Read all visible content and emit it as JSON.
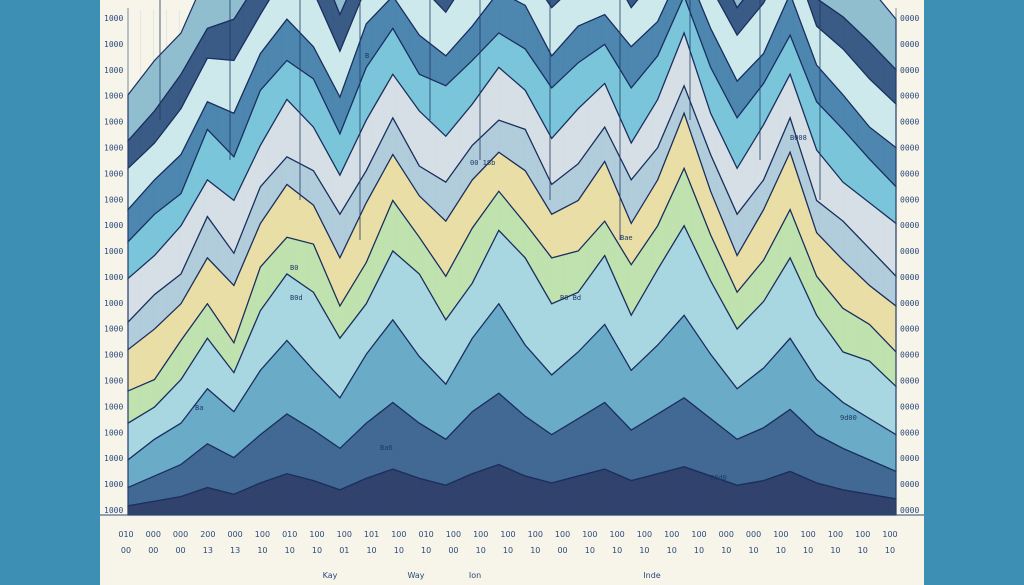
{
  "chart_data": {
    "type": "area",
    "title": "",
    "xlabel": "",
    "ylabel": "",
    "grid": true,
    "legend": "none",
    "x_range": [
      0,
      60
    ],
    "y_range": [
      0,
      22
    ],
    "y_ticks_left": [
      "1000",
      "1000",
      "1000",
      "1000",
      "1000",
      "1000",
      "1000",
      "1000",
      "1000",
      "1000",
      "1000",
      "1000",
      "1000",
      "1000",
      "1000",
      "1000",
      "1000",
      "1000",
      "1000",
      "1000"
    ],
    "y_ticks_right": [
      "0000",
      "0000",
      "0000",
      "0000",
      "0000",
      "0000",
      "0000",
      "0000",
      "0000",
      "0000",
      "0000",
      "0000",
      "0000",
      "0000",
      "0000",
      "0000",
      "0000",
      "0000",
      "0000",
      "0000"
    ],
    "x_ticks_row1": [
      "010",
      "000",
      "000",
      "200",
      "000",
      "100",
      "010",
      "100",
      "100",
      "101",
      "100",
      "010",
      "100",
      "100",
      "100",
      "100",
      "100",
      "100",
      "100",
      "100",
      "100",
      "100",
      "000",
      "000",
      "100",
      "100",
      "100",
      "100",
      "100"
    ],
    "x_ticks_row2": [
      "00",
      "00",
      "00",
      "13",
      "13",
      "10",
      "10",
      "10",
      "01",
      "10",
      "10",
      "10",
      "00",
      "10",
      "10",
      "10",
      "00",
      "10",
      "10",
      "10",
      "10",
      "10",
      "10",
      "10",
      "10",
      "10",
      "10",
      "10",
      "10"
    ],
    "month_labels": [
      "Kay",
      "Way",
      "Ion",
      "Inde"
    ],
    "annotations": [
      "Ba",
      "B0d",
      "Ba6",
      "00 18b",
      "B0 Bd",
      "Bae",
      "B8d0",
      "B008",
      "9d00",
      "B0",
      "B"
    ],
    "colors": [
      "#1b2f5e",
      "#2e5a8a",
      "#5aa3c4",
      "#9fd4e0",
      "#b8e0a8",
      "#e8dca0",
      "#a8c8d8",
      "#d0dde4",
      "#6cc0d8",
      "#3a7aa8",
      "#c8e8ec",
      "#244a7a",
      "#84b8cc"
    ],
    "series": [
      {
        "values": [
          2,
          2.2,
          1.8,
          2.4,
          2,
          1.6,
          1.9,
          2.6,
          2.2,
          1.8,
          2.1,
          2.7,
          2.2,
          1.7,
          1.9,
          2.4,
          2.2,
          1.8,
          2.0,
          2.5,
          2.3,
          1.9,
          1.6,
          1.8,
          2.1,
          1.9,
          1.7,
          2.0,
          2.4,
          2.2
        ]
      },
      {
        "values": [
          1.2,
          1.4,
          1.5,
          1.3,
          1.8,
          1.6,
          1.4,
          1.9,
          1.6,
          1.4,
          1.8,
          2.1,
          1.6,
          1.4,
          1.7,
          1.3,
          1.8,
          1.5,
          1.9,
          1.6,
          1.4,
          1.7,
          1.5,
          1.2,
          1.3,
          1.5,
          1.2,
          1.4,
          1.6,
          1.5
        ]
      },
      {
        "values": [
          1.8,
          1.6,
          2.0,
          1.9,
          2.3,
          1.7,
          2.1,
          2.4,
          2.0,
          1.6,
          1.8,
          2.2,
          1.9,
          2.4,
          1.8,
          1.6,
          2.1,
          1.9,
          2.4,
          1.7,
          2.0,
          2.3,
          1.8,
          2.0,
          2.2,
          1.9,
          1.7,
          2.0,
          2.1,
          1.9
        ]
      },
      {
        "values": [
          1.4,
          1.5,
          1.7,
          1.2,
          1.9,
          1.6,
          1.8,
          1.4,
          1.6,
          1.9,
          1.4,
          1.7,
          1.3,
          1.5,
          1.8,
          1.9,
          1.4,
          1.6,
          1.3,
          1.8,
          1.5,
          1.4,
          1.7,
          1.6,
          1.3,
          1.8,
          1.6,
          1.5,
          1.4,
          1.7
        ]
      },
      {
        "values": [
          1.6,
          1.8,
          1.4,
          2.2,
          1.9,
          2.4,
          1.7,
          2.1,
          1.8,
          2.3,
          2.0,
          1.6,
          2.2,
          1.9,
          1.5,
          1.8,
          2.2,
          2.0,
          1.7,
          2.4,
          1.9,
          1.6,
          2.0,
          2.2,
          1.8,
          1.7,
          2.1,
          2.3,
          1.9,
          1.6
        ]
      },
      {
        "values": [
          1.9,
          1.7,
          2.1,
          1.6,
          2.3,
          1.8,
          2.5,
          1.9,
          1.7,
          2.2,
          1.9,
          2.4,
          2.0,
          1.8,
          2.3,
          1.7,
          2.0,
          2.4,
          1.9,
          1.6,
          2.1,
          2.3,
          1.8,
          2.0,
          2.4,
          1.9,
          2.2,
          1.7,
          2.0,
          2.3
        ]
      },
      {
        "values": [
          1.2,
          1.5,
          1.3,
          1.8,
          1.4,
          1.6,
          1.2,
          1.5,
          1.9,
          1.4,
          1.6,
          1.3,
          1.7,
          1.5,
          1.4,
          1.8,
          1.3,
          1.6,
          1.5,
          1.9,
          1.4,
          1.2,
          1.6,
          1.8,
          1.3,
          1.5,
          1.4,
          1.7,
          1.6,
          1.3
        ]
      },
      {
        "values": [
          1.8,
          2.2,
          1.6,
          2.0,
          2.5,
          1.9,
          2.3,
          1.7,
          2.1,
          2.6,
          2.0,
          1.8,
          2.4,
          2.1,
          1.7,
          2.3,
          1.9,
          2.2,
          2.6,
          1.8,
          2.0,
          2.4,
          1.9,
          1.6,
          2.2,
          2.5,
          1.9,
          2.1,
          1.7,
          2.0
        ]
      },
      {
        "values": [
          1.4,
          1.2,
          1.7,
          1.5,
          1.3,
          1.9,
          1.6,
          2.1,
          1.4,
          1.8,
          2.2,
          1.6,
          1.9,
          2.4,
          1.7,
          1.5,
          2.0,
          1.8,
          1.5,
          2.2,
          1.9,
          2.5,
          2.0,
          1.6,
          1.8,
          2.1,
          1.7,
          1.9,
          1.6,
          1.5
        ]
      },
      {
        "values": [
          1.6,
          1.4,
          1.9,
          2.2,
          1.7,
          2.6,
          2.9,
          3.4,
          2.6,
          2.2,
          3.0,
          3.6,
          2.8,
          2.4,
          3.2,
          3.8,
          3.1,
          2.6,
          3.0,
          2.4,
          3.3,
          3.9,
          3.2,
          2.6,
          2.9,
          3.5,
          2.8,
          2.2,
          2.5,
          2.1
        ]
      },
      {
        "values": [
          1.2,
          1.6,
          1.8,
          2.4,
          2.0,
          2.8,
          3.2,
          2.6,
          2.2,
          3.0,
          3.6,
          2.9,
          2.4,
          3.2,
          3.9,
          3.1,
          2.6,
          2.9,
          3.4,
          2.6,
          3.0,
          3.6,
          2.8,
          2.2,
          2.6,
          3.1,
          2.4,
          2.0,
          1.8,
          1.6
        ]
      },
      {
        "values": [
          0.8,
          1.1,
          1.4,
          1.9,
          1.6,
          2.1,
          2.6,
          2.2,
          1.8,
          2.4,
          2.9,
          2.4,
          2.0,
          2.7,
          3.1,
          2.6,
          2.1,
          2.5,
          2.9,
          2.2,
          2.6,
          3.0,
          2.5,
          2.0,
          2.3,
          2.7,
          2.1,
          1.8,
          1.5,
          1.2
        ]
      },
      {
        "values": [
          0.4,
          0.6,
          0.8,
          1.2,
          0.9,
          1.4,
          1.8,
          1.5,
          1.1,
          1.6,
          2.0,
          1.6,
          1.3,
          1.8,
          2.2,
          1.7,
          1.4,
          1.7,
          2.0,
          1.5,
          1.8,
          2.1,
          1.7,
          1.3,
          1.5,
          1.9,
          1.4,
          1.1,
          0.9,
          0.7
        ]
      }
    ]
  }
}
